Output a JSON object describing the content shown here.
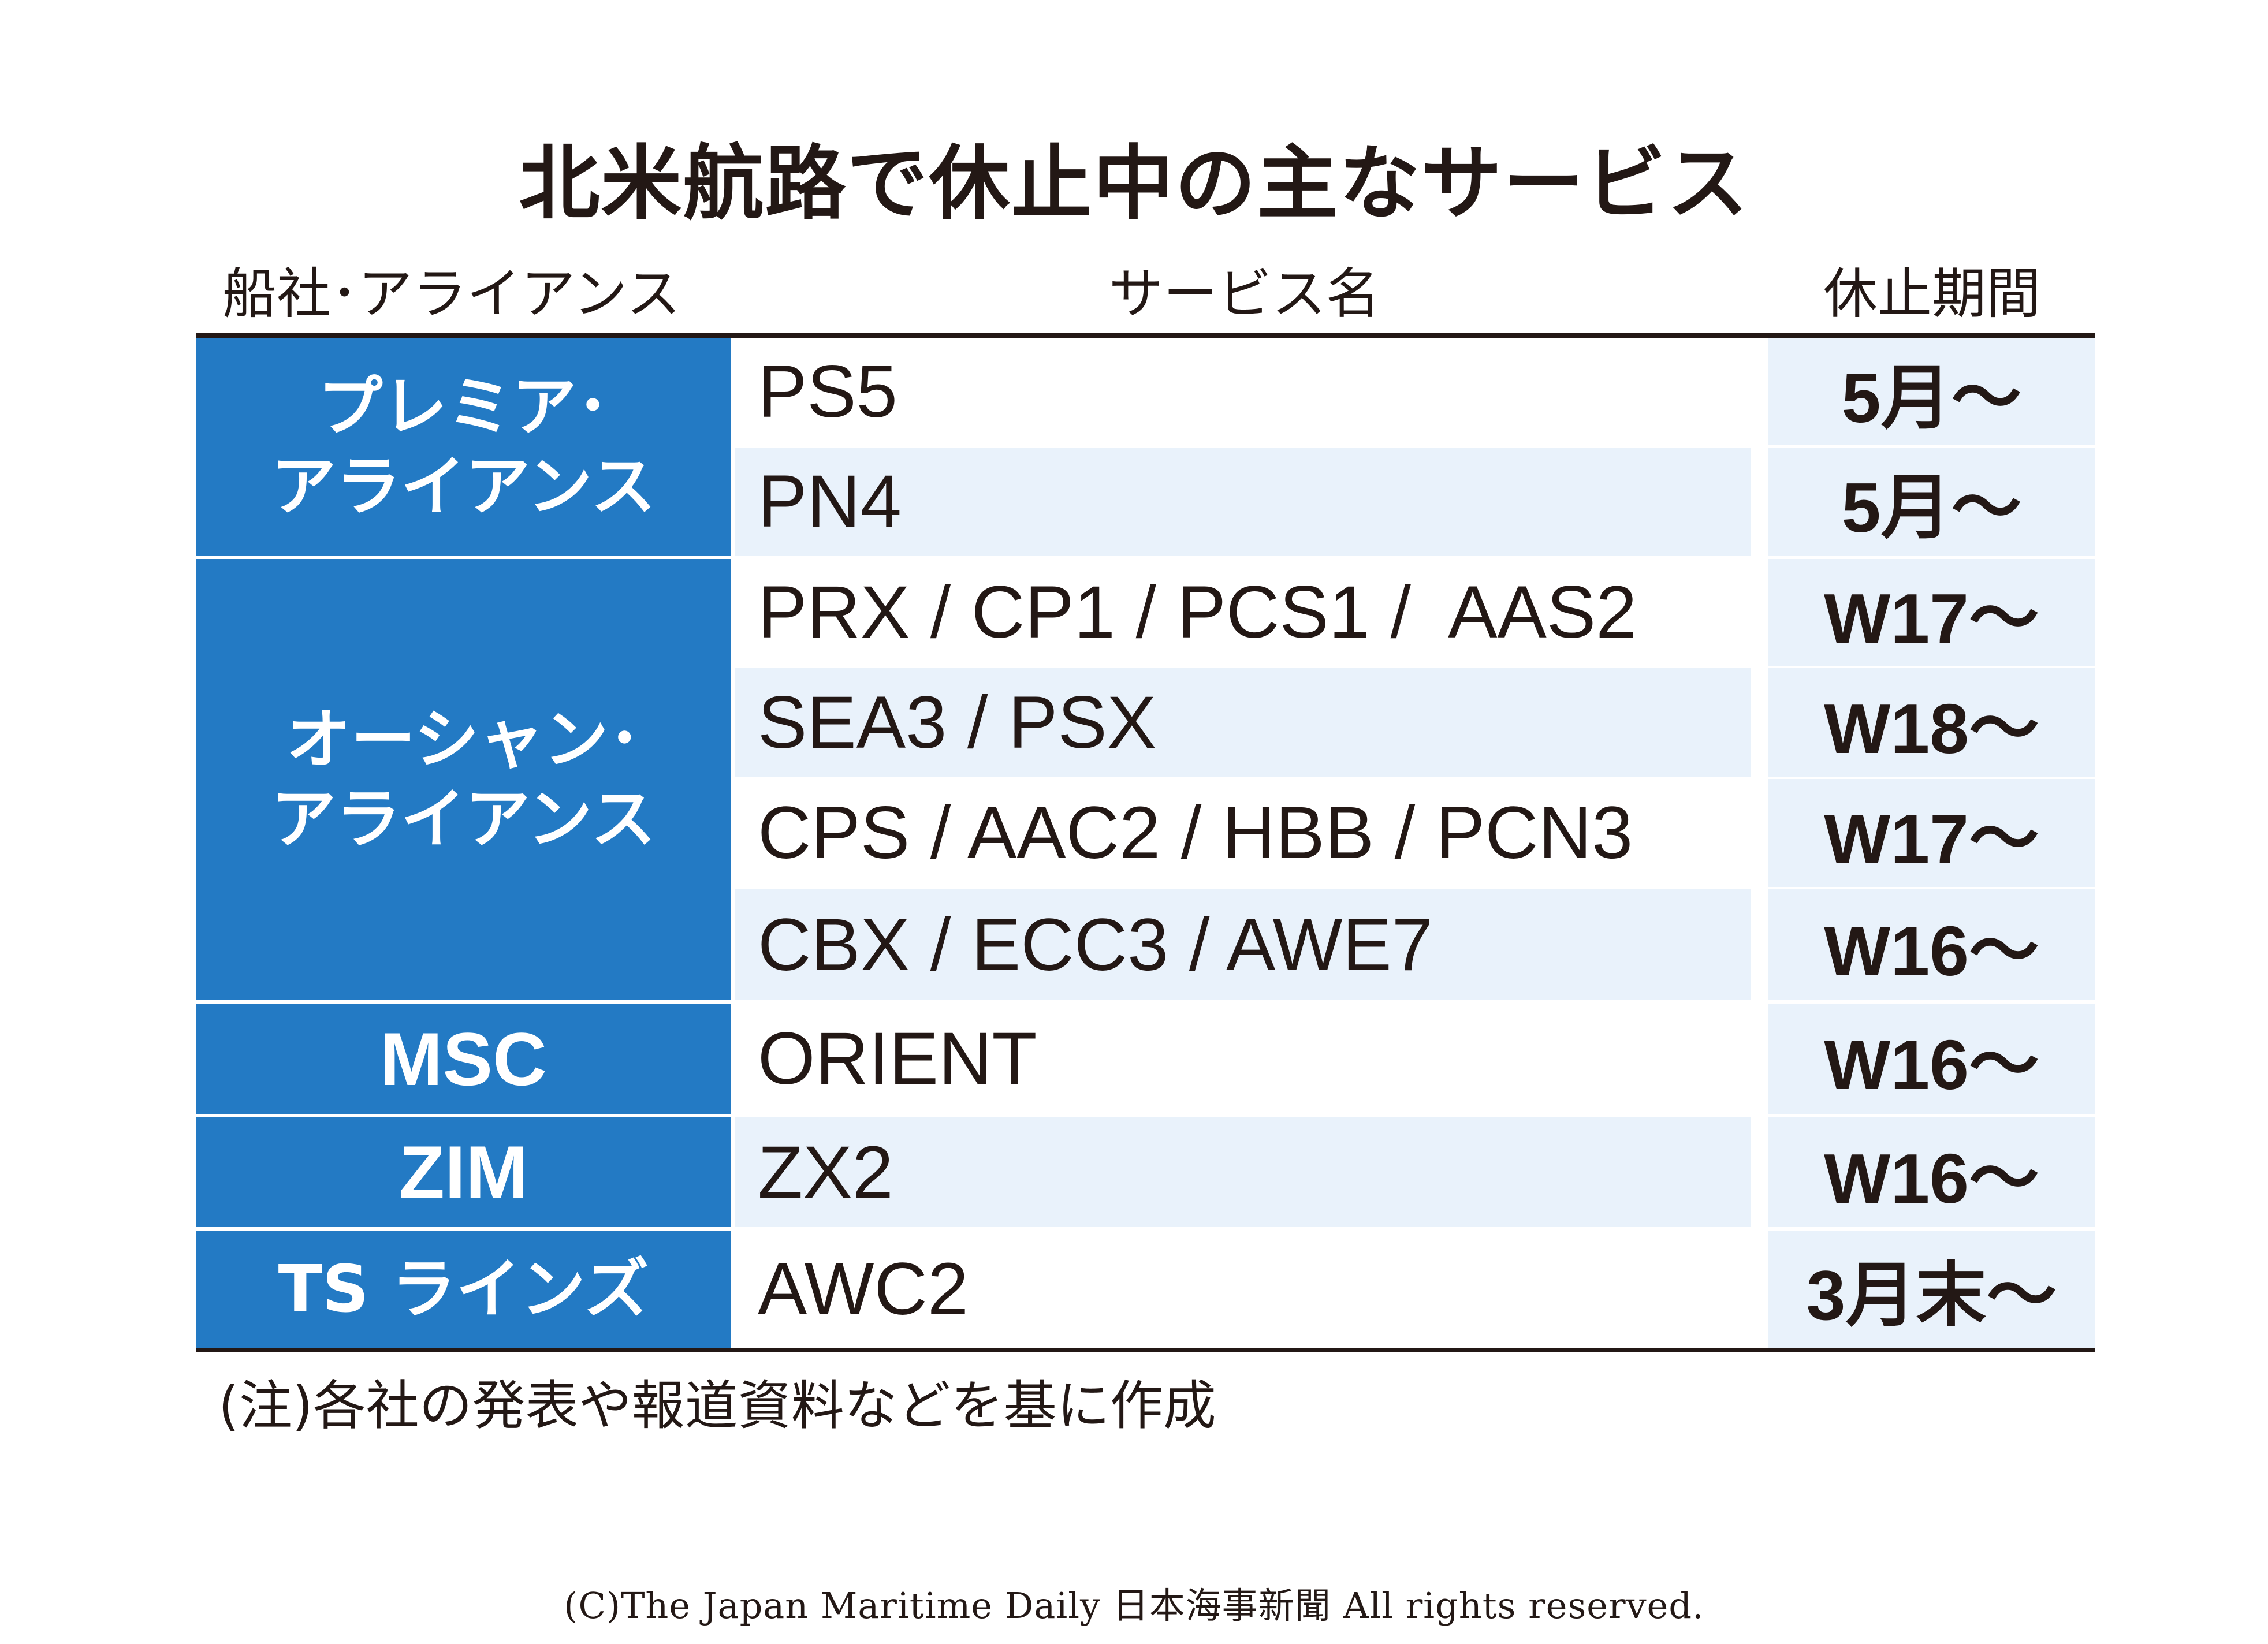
{
  "title": "北米航路で休止中の主なサービス",
  "headers": {
    "company": "船社･アライアンス",
    "service": "サービス名",
    "period": "休止期間"
  },
  "groups": [
    {
      "lines": [
        "プレミア･",
        "アライアンス"
      ]
    },
    {
      "lines": [
        "オーシャン･",
        "アライアンス"
      ]
    },
    {
      "lines": [
        "MSC"
      ]
    },
    {
      "lines": [
        "ZIM"
      ]
    },
    {
      "lines": [
        "TS ラインズ"
      ]
    }
  ],
  "rows": [
    {
      "service": "PS5",
      "period": "5月～"
    },
    {
      "service": "PN4",
      "period": "5月～"
    },
    {
      "service": "PRX / CP1 / PCS1 /  AAS2",
      "period": "W17～"
    },
    {
      "service": "SEA3 / PSX",
      "period": "W18～"
    },
    {
      "service": "CPS / AAC2 / HBB / PCN3",
      "period": "W17～"
    },
    {
      "service": "CBX / ECC3 / AWE7",
      "period": "W16～"
    },
    {
      "service": "ORIENT",
      "period": "W16～"
    },
    {
      "service": "ZX2",
      "period": "W16～"
    },
    {
      "service": "AWC2",
      "period": "3月末～"
    }
  ],
  "note": "(注)各社の発表や報道資料などを基に作成",
  "copyright": "(C)The Japan Maritime Daily 日本海事新聞 All rights reserved.",
  "colors": {
    "company_bg": "#237ac4",
    "alt_row_bg": "#e9f2fb",
    "text": "#231815"
  }
}
